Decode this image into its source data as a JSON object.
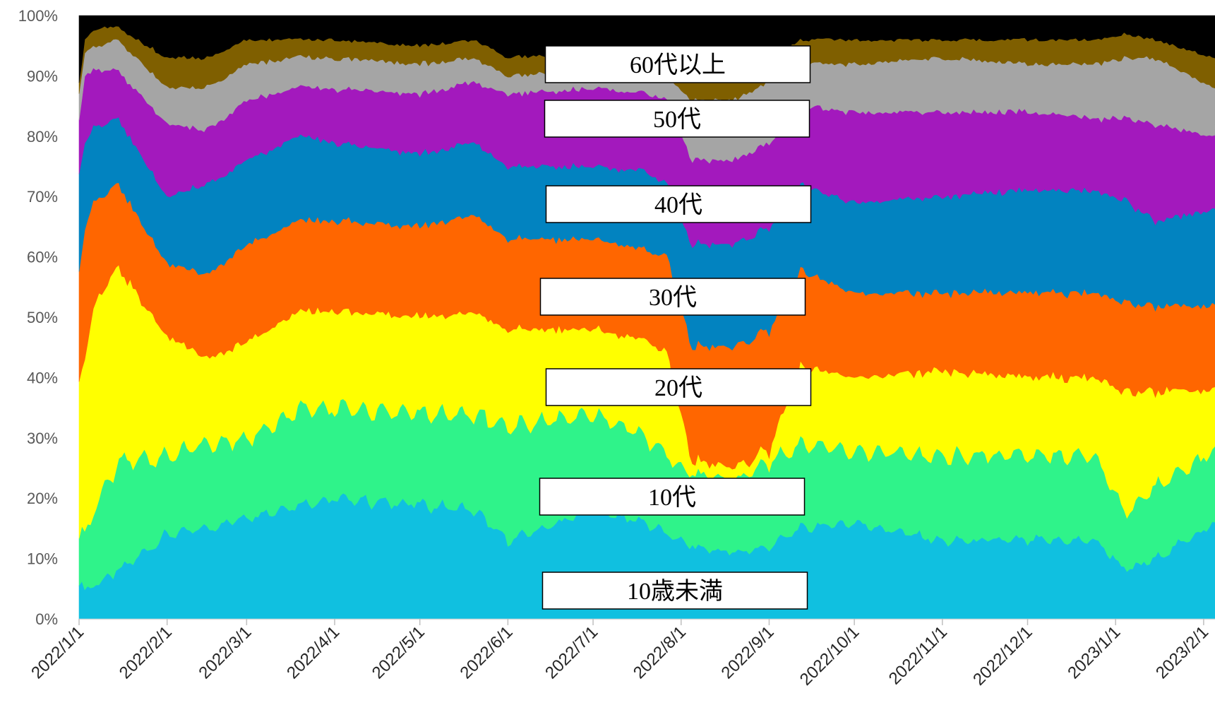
{
  "chart_data": {
    "type": "area",
    "stacked": true,
    "normalized": true,
    "x_axis_kind": "date",
    "x_start": "2022-01-01",
    "x_end": "2023-02-05",
    "x_ticks": [
      "2022/1/1",
      "2022/2/1",
      "2022/3/1",
      "2022/4/1",
      "2022/5/1",
      "2022/6/1",
      "2022/7/1",
      "2022/8/1",
      "2022/9/1",
      "2022/10/1",
      "2022/11/1",
      "2022/12/1",
      "2023/1/1",
      "2023/2/1"
    ],
    "y_ticks": [
      "0%",
      "10%",
      "20%",
      "30%",
      "40%",
      "50%",
      "60%",
      "70%",
      "80%",
      "90%",
      "100%"
    ],
    "ylim": [
      0,
      100
    ],
    "keyframe_dates": [
      "2022-01-01",
      "2022-01-03",
      "2022-01-08",
      "2022-01-15",
      "2022-02-01",
      "2022-02-15",
      "2022-03-01",
      "2022-03-20",
      "2022-04-01",
      "2022-05-01",
      "2022-05-20",
      "2022-06-01",
      "2022-07-01",
      "2022-07-20",
      "2022-07-27",
      "2022-08-05",
      "2022-08-20",
      "2022-09-01",
      "2022-09-12",
      "2022-10-01",
      "2022-11-01",
      "2022-12-01",
      "2022-12-25",
      "2023-01-05",
      "2023-01-15",
      "2023-02-05"
    ],
    "series": [
      {
        "name": "10歳未満",
        "color": "#10C0E0",
        "values": [
          6,
          5,
          6,
          8,
          14,
          15,
          17,
          19,
          20,
          19,
          18,
          13,
          18,
          16,
          14,
          12,
          11,
          12,
          15,
          16,
          13,
          13,
          13,
          8,
          10,
          16
        ]
      },
      {
        "name": "10代",
        "color": "#2FF38A",
        "values": [
          8,
          9,
          14,
          18,
          13,
          14,
          13,
          16,
          15,
          15,
          16,
          19,
          16,
          14,
          13,
          12,
          12,
          14,
          14,
          12,
          14,
          14,
          14,
          9,
          12,
          12
        ]
      },
      {
        "name": "20代",
        "color": "#FFFF00",
        "values": [
          26,
          30,
          34,
          32,
          20,
          14,
          16,
          16,
          16,
          16,
          17,
          16,
          14,
          16,
          17,
          2,
          2,
          2,
          13,
          12,
          14,
          13,
          13,
          20,
          16,
          10
        ]
      },
      {
        "name": "30代",
        "color": "#FF6600",
        "values": [
          18,
          21,
          16,
          14,
          12,
          14,
          16,
          15,
          15,
          15,
          16,
          15,
          15,
          15,
          16,
          19,
          20,
          20,
          16,
          14,
          13,
          14,
          14,
          15,
          14,
          14
        ]
      },
      {
        "name": "40代",
        "color": "#0283C0",
        "values": [
          16,
          14,
          12,
          11,
          11,
          15,
          14,
          14,
          13,
          12,
          12,
          12,
          12,
          13,
          12,
          17,
          17,
          17,
          14,
          15,
          16,
          17,
          17,
          17,
          14,
          16
        ]
      },
      {
        "name": "50代",
        "color": "#A319BD",
        "values": [
          9,
          11,
          9,
          8,
          12,
          9,
          10,
          8,
          9,
          10,
          10,
          12,
          13,
          13,
          14,
          14,
          14,
          14,
          13,
          15,
          14,
          13,
          12,
          14,
          16,
          12
        ]
      },
      {
        "name": "60代以上",
        "color": "#A5A5A5",
        "values": [
          4,
          4,
          4,
          5,
          6,
          7,
          6,
          5,
          5,
          5,
          4,
          3,
          3,
          4,
          4,
          10,
          10,
          10,
          7,
          8,
          9,
          8,
          9,
          10,
          11,
          8
        ]
      },
      {
        "name": "",
        "color": "#7F5F00",
        "values": [
          2,
          2,
          3,
          2,
          5,
          5,
          4,
          3,
          3,
          3,
          3,
          3,
          3,
          3,
          3,
          4,
          4,
          4,
          4,
          4,
          3,
          4,
          4,
          4,
          3,
          5
        ]
      },
      {
        "name": "",
        "color": "#000000",
        "values": [
          11,
          4,
          2,
          2,
          7,
          7,
          4,
          4,
          4,
          5,
          4,
          7,
          6,
          6,
          7,
          10,
          10,
          7,
          4,
          4,
          4,
          4,
          4,
          3,
          4,
          7
        ]
      }
    ],
    "annotations": [
      "60代以上",
      "50代",
      "40代",
      "30代",
      "20代",
      "10代",
      "10歳未満"
    ]
  }
}
